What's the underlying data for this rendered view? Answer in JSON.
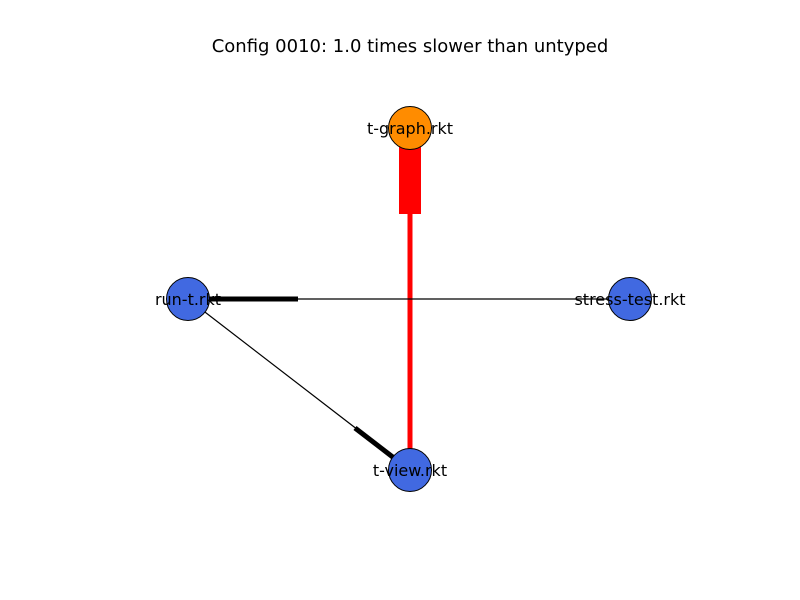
{
  "title": "Config 0010: 1.0 times slower than untyped",
  "nodes": [
    {
      "id": "t-graph",
      "label": "t-graph.rkt",
      "color": "#ff8c00"
    },
    {
      "id": "run-t",
      "label": "run-t.rkt",
      "color": "#4169e1"
    },
    {
      "id": "stress-test",
      "label": "stress-test.rkt",
      "color": "#4169e1"
    },
    {
      "id": "t-view",
      "label": "t-view.rkt",
      "color": "#4169e1"
    }
  ],
  "edges": [
    {
      "from": "t-view",
      "to": "t-graph",
      "color": "#ff0000",
      "boundary": "typed-untyped"
    },
    {
      "from": "stress-test",
      "to": "run-t",
      "color": "#000000",
      "boundary": "same"
    },
    {
      "from": "run-t",
      "to": "t-view",
      "color": "#000000",
      "boundary": "same"
    }
  ]
}
